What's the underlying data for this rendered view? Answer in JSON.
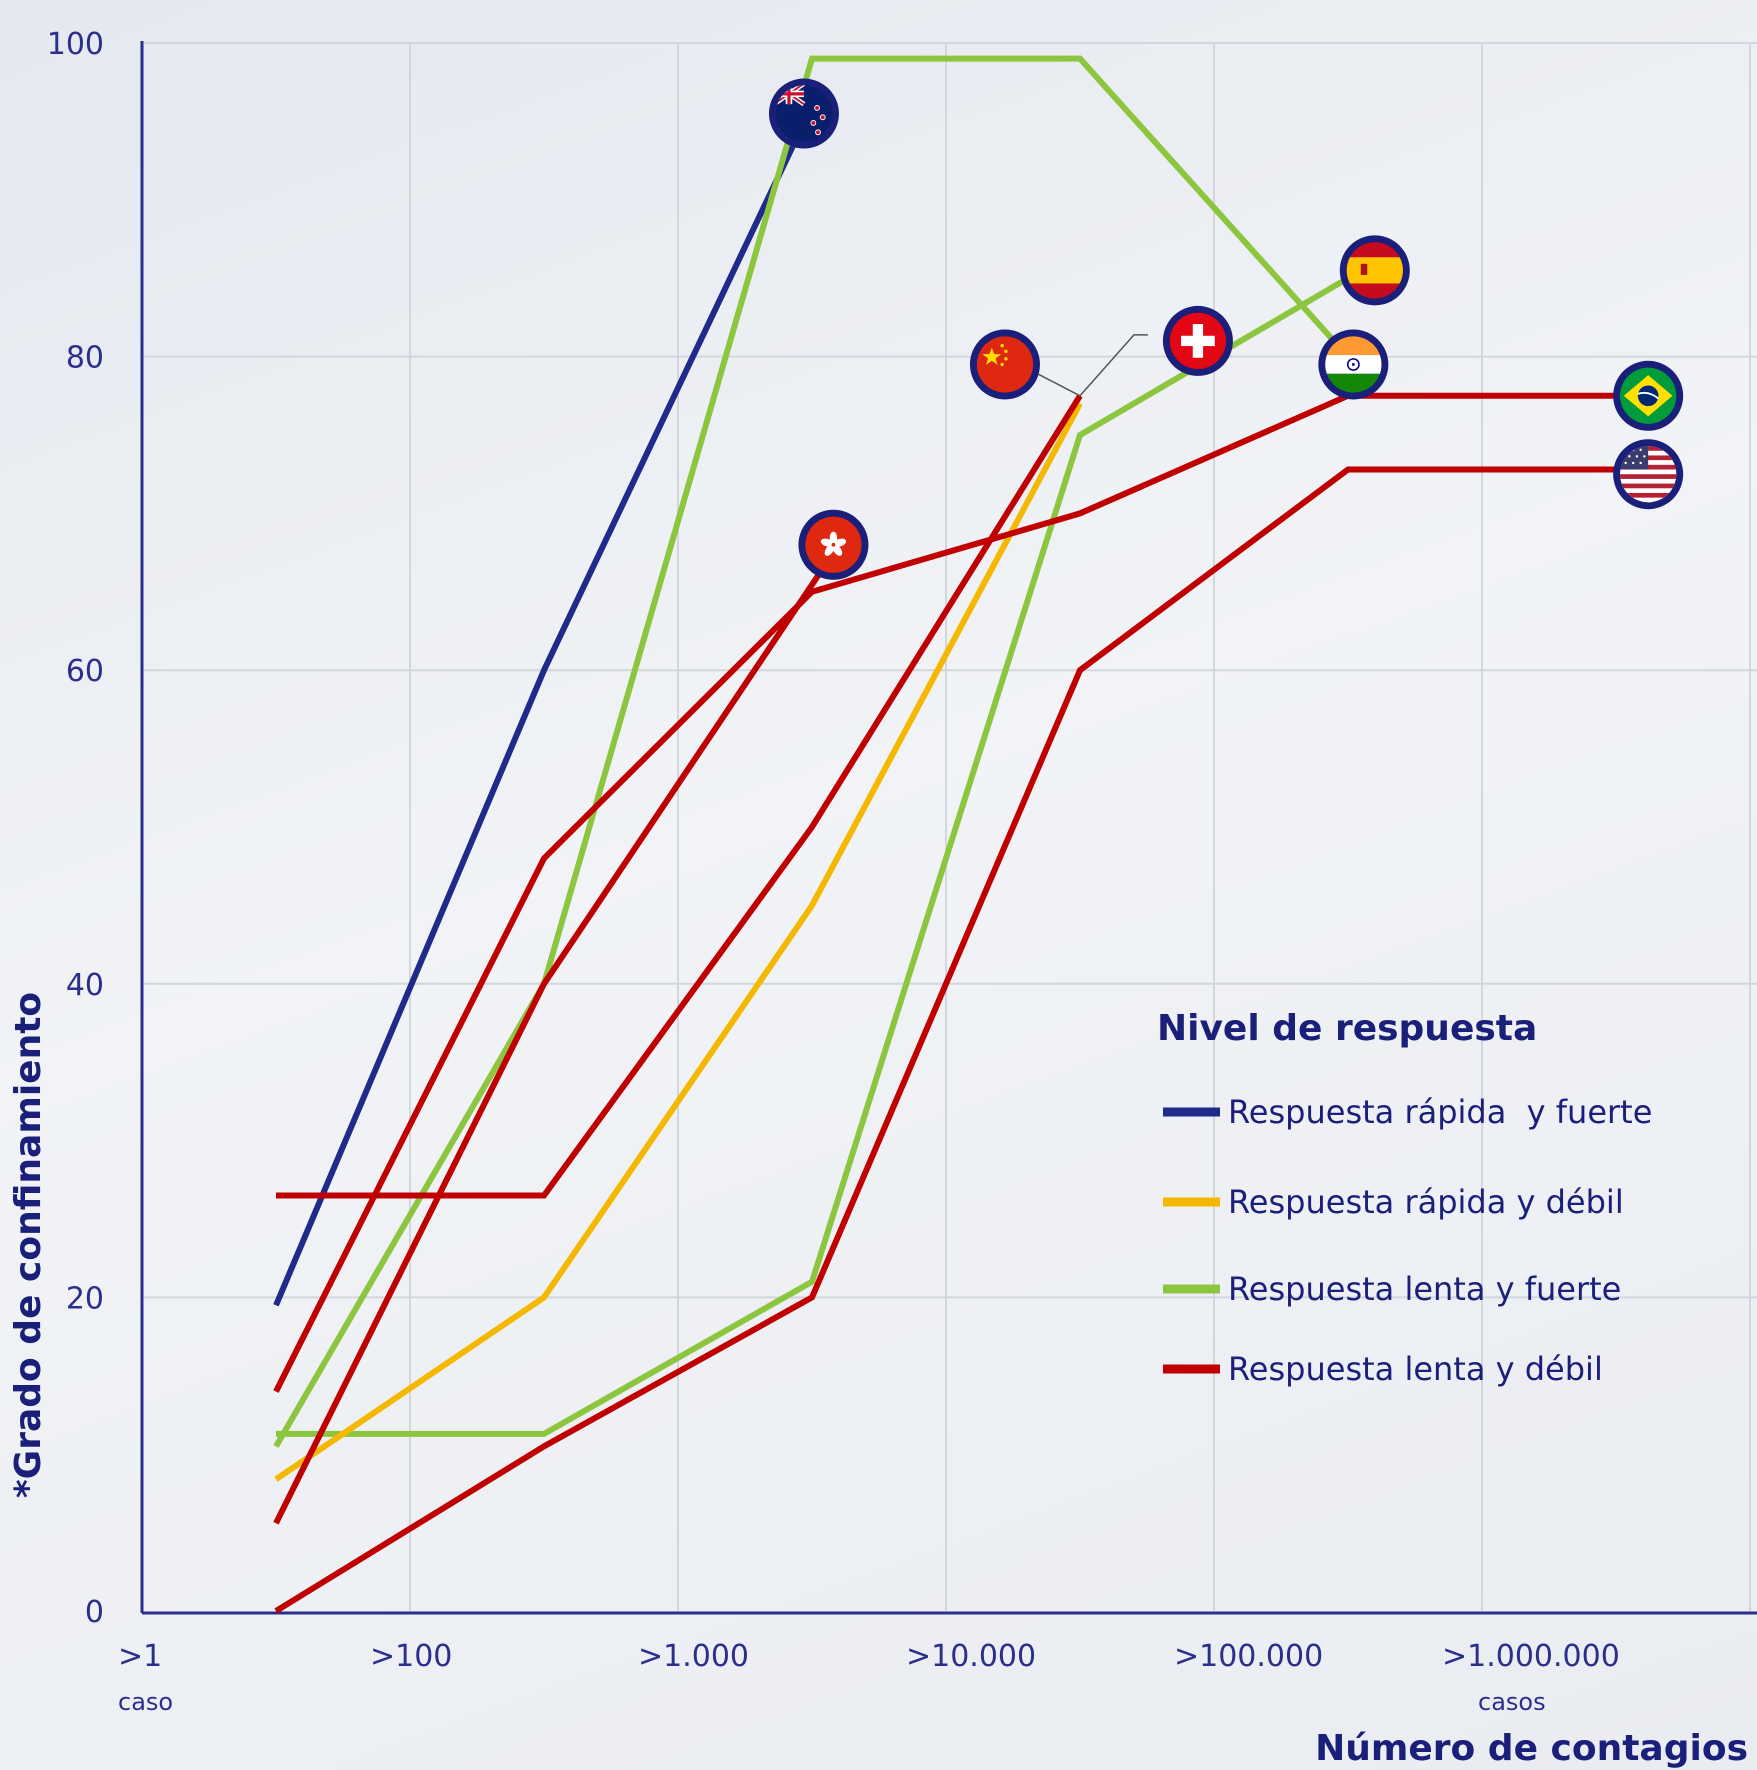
{
  "chart_data": {
    "type": "line",
    "xlabel": "Número de contagios",
    "ylabel": "*Grado de confinamiento",
    "x_ticks": [
      {
        "label": ">1",
        "sub": "caso"
      },
      {
        "label": ">100",
        "sub": ""
      },
      {
        "label": ">1.000",
        "sub": ""
      },
      {
        "label": ">10.000",
        "sub": ""
      },
      {
        "label": ">100.000",
        "sub": ""
      },
      {
        "label": ">1.000.000",
        "sub": "casos"
      }
    ],
    "x_scale": "log",
    "y_ticks": [
      "0",
      "20",
      "40",
      "60",
      "80",
      "100"
    ],
    "ylim": [
      0,
      100
    ],
    "grid": true,
    "legend": {
      "title": "Nivel de respuesta",
      "placement": "right-middle",
      "entries": [
        {
          "label": "Respuesta rápida  y fuerte",
          "color": "#1f2a8a"
        },
        {
          "label": "Respuesta rápida y débil",
          "color": "#f5b800"
        },
        {
          "label": "Respuesta lenta y fuerte",
          "color": "#8cc63f"
        },
        {
          "label": "Respuesta lenta y débil",
          "color": "#c00000"
        }
      ]
    },
    "series": [
      {
        "group": "Respuesta rápida  y fuerte",
        "color": "#1f2a8a",
        "flag": "new-zealand-flag-icon",
        "points": [
          [
            0.5,
            19.5
          ],
          [
            1.5,
            60
          ],
          [
            2.5,
            96
          ]
        ]
      },
      {
        "group": "Respuesta lenta y fuerte",
        "color": "#8cc63f",
        "flag": "india-flag-icon",
        "points": [
          [
            0.5,
            10.5
          ],
          [
            1.5,
            40
          ],
          [
            2.5,
            99
          ],
          [
            3.5,
            99
          ],
          [
            4.5,
            80
          ]
        ]
      },
      {
        "group": "Respuesta lenta y fuerte",
        "color": "#8cc63f",
        "flag": "spain-flag-icon",
        "points": [
          [
            0.5,
            11.3
          ],
          [
            1.5,
            11.3
          ],
          [
            2.5,
            21
          ],
          [
            3.5,
            75
          ],
          [
            4.6,
            86
          ]
        ]
      },
      {
        "group": "Respuesta rápida y débil",
        "color": "#f5b800",
        "flag": "",
        "points": [
          [
            0.5,
            8.4
          ],
          [
            1.5,
            20
          ],
          [
            2.5,
            45
          ],
          [
            3.5,
            77
          ]
        ]
      },
      {
        "group": "Respuesta lenta y débil",
        "color": "#c00000",
        "flag": "hong-kong-flag-icon",
        "points": [
          [
            0.5,
            14
          ],
          [
            1.5,
            48
          ],
          [
            2.5,
            65
          ],
          [
            3.5,
            70
          ],
          [
            4.5,
            77.5
          ],
          [
            5.6,
            77.5
          ]
        ]
      },
      {
        "group": "Respuesta lenta y débil",
        "color": "#c00000",
        "flag": "hong-kong-flag-icon",
        "points": [
          [
            0.5,
            5.6
          ],
          [
            1.5,
            40
          ],
          [
            2.6,
            68
          ]
        ]
      },
      {
        "group": "Respuesta lenta y débil",
        "color": "#c00000",
        "flag": "switzerland-flag-icon",
        "points": [
          [
            0.5,
            26.5
          ],
          [
            1.5,
            26.5
          ],
          [
            2.5,
            50
          ],
          [
            3.5,
            77.5
          ]
        ]
      },
      {
        "group": "Respuesta lenta y débil",
        "color": "#c00000",
        "flag": "united-states-flag-icon",
        "points": [
          [
            0.5,
            0
          ],
          [
            1.5,
            10.5
          ],
          [
            2.5,
            20
          ],
          [
            3.5,
            60
          ],
          [
            4.5,
            72.8
          ],
          [
            5.6,
            72.8
          ]
        ]
      }
    ],
    "flags": [
      {
        "name": "new-zealand-flag-icon",
        "x": 2.47,
        "y": 95.5
      },
      {
        "name": "hong-kong-flag-icon",
        "x": 2.58,
        "y": 68
      },
      {
        "name": "china-flag-icon",
        "x": 3.22,
        "y": 79.5
      },
      {
        "name": "switzerland-flag-icon",
        "x": 3.94,
        "y": 81
      },
      {
        "name": "spain-flag-icon",
        "x": 4.6,
        "y": 85.5
      },
      {
        "name": "india-flag-icon",
        "x": 4.52,
        "y": 79.5
      },
      {
        "name": "brazil-flag-icon",
        "x": 5.62,
        "y": 77.5
      },
      {
        "name": "united-states-flag-icon",
        "x": 5.62,
        "y": 72.5
      }
    ]
  }
}
